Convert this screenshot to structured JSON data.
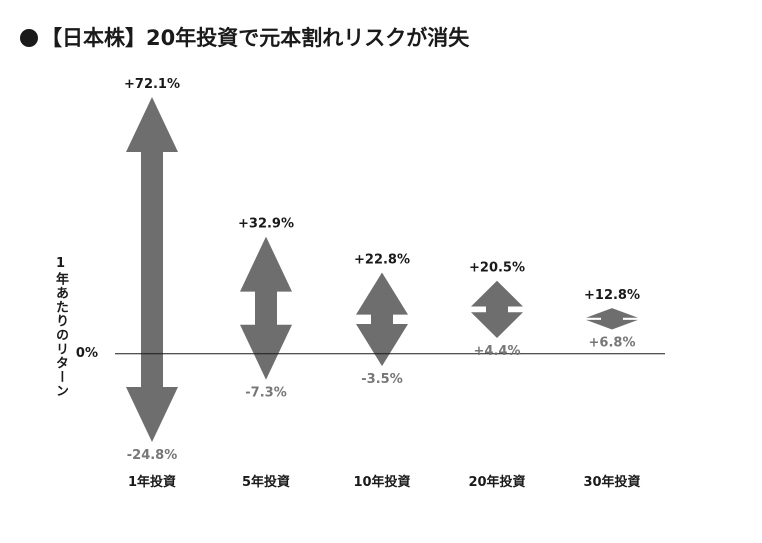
{
  "title": "【日本株】20年投資で元本割れリスクが消失",
  "colors": {
    "arrow": "#6e6e6e",
    "text": "#1a1a1a",
    "min_label": "#777777",
    "axis": "#1a1a1a"
  },
  "chart_data": {
    "type": "range-arrow",
    "title": "【日本株】20年投資で元本割れリスクが消失",
    "ylabel": "1年あたりのリターン",
    "zero_label": "0%",
    "ylim": [
      -24.8,
      72.1
    ],
    "categories": [
      "1年投資",
      "5年投資",
      "10年投資",
      "20年投資",
      "30年投資"
    ],
    "max": [
      72.1,
      32.9,
      22.8,
      20.5,
      12.8
    ],
    "min": [
      -24.8,
      -7.3,
      -3.5,
      4.4,
      6.8
    ],
    "max_labels": [
      "+72.1%",
      "+32.9%",
      "+22.8%",
      "+20.5%",
      "+12.8%"
    ],
    "min_labels": [
      "-24.8%",
      "-7.3%",
      "-3.5%",
      "+4.4%",
      "+6.8%"
    ]
  }
}
